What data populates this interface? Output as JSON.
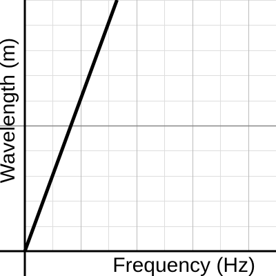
{
  "chart_data": {
    "type": "line",
    "title": "",
    "xlabel": "Frequency (Hz)",
    "ylabel": "Wavelength (m)",
    "xlim": [
      0,
      9
    ],
    "ylim": [
      0,
      10
    ],
    "grid": true,
    "minor_x_step": 1,
    "major_x_step": 2,
    "minor_y_step": 1,
    "major_y_step": 5,
    "series": [
      {
        "x": [
          0,
          3.3
        ],
        "y": [
          0,
          10
        ]
      }
    ],
    "colors": {
      "line": "#000000",
      "axis": "#000000",
      "minor_grid": "#dddddd",
      "major_grid": "#bbbbbb",
      "mid_grid": "#888888"
    }
  }
}
